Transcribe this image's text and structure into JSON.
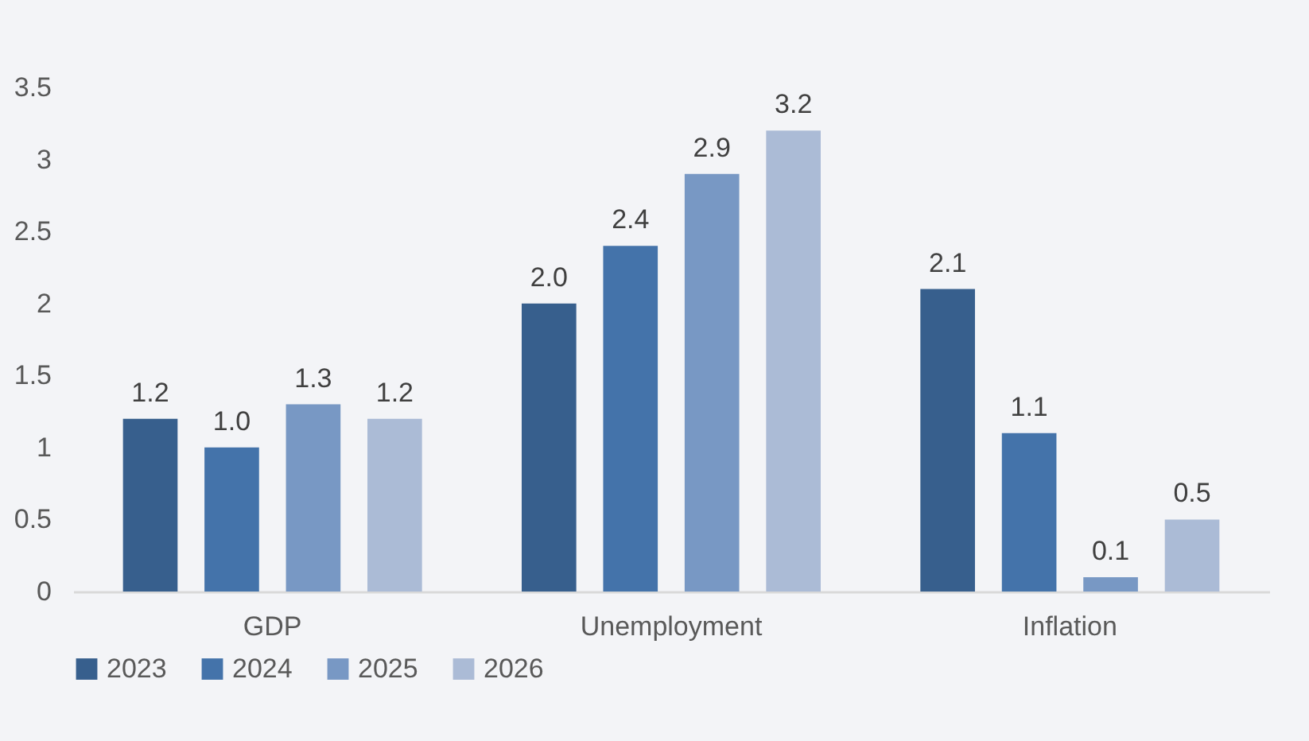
{
  "chart_data": {
    "type": "bar",
    "categories": [
      "GDP",
      "Unemployment",
      "Inflation"
    ],
    "series": [
      {
        "name": "2023",
        "color": "#375f8d",
        "values": [
          1.2,
          2.0,
          2.1
        ],
        "value_labels": [
          "1.2",
          "2.0",
          "2.1"
        ]
      },
      {
        "name": "2024",
        "color": "#4473aa",
        "values": [
          1.0,
          2.4,
          1.1
        ],
        "value_labels": [
          "1.0",
          "2.4",
          "1.1"
        ]
      },
      {
        "name": "2025",
        "color": "#7898c4",
        "values": [
          1.3,
          2.9,
          0.1
        ],
        "value_labels": [
          "1.3",
          "2.9",
          "0.1"
        ]
      },
      {
        "name": "2026",
        "color": "#abbbd6",
        "values": [
          1.2,
          3.2,
          0.5
        ],
        "value_labels": [
          "1.2",
          "3.2",
          "0.5"
        ]
      }
    ],
    "ylim": [
      0,
      3.5
    ],
    "yticks": [
      0,
      0.5,
      1,
      1.5,
      2,
      2.5,
      3,
      3.5
    ],
    "grid": false,
    "legend": "bottom"
  }
}
